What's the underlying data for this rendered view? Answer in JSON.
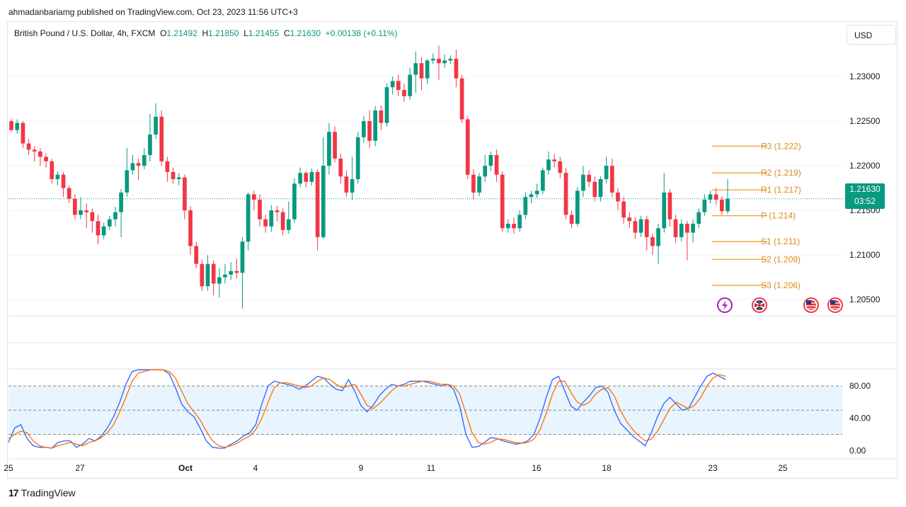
{
  "header": {
    "published": "ahmadanbariamg published on TradingView.com, Oct 23, 2023 11:56 UTC+3"
  },
  "legend": {
    "symbol": "British Pound / U.S. Dollar, 4h, FXCM",
    "o_label": "O",
    "o": "1.21492",
    "h_label": "H",
    "h": "1.21850",
    "l_label": "L",
    "l": "1.21455",
    "c_label": "C",
    "c": "1.21630",
    "change": "+0.00138 (+0.11%)"
  },
  "currency_button": "USD",
  "last_price": {
    "value": "1.21630",
    "countdown": "03:52"
  },
  "footer": {
    "brand_mark": "17",
    "brand": "TradingView"
  },
  "colors": {
    "up": "#089981",
    "down": "#f23645",
    "pivot": "#f0a030",
    "stoch_k": "#2962ff",
    "stoch_d": "#ff6d00"
  },
  "chart_data": [
    {
      "type": "candlestick",
      "title": "British Pound / U.S. Dollar, 4h, FXCM",
      "y_ticks": [
        "1.20500",
        "1.21000",
        "1.21500",
        "1.22000",
        "1.22500",
        "1.23000"
      ],
      "ylim": [
        1.2035,
        1.2335
      ],
      "x_ticks": [
        "25",
        "27",
        "Oct",
        "4",
        "9",
        "11",
        "16",
        "18",
        "23",
        "25"
      ],
      "candles": [
        [
          1.225,
          1.224,
          1.2252,
          1.2238
        ],
        [
          1.224,
          1.2248,
          1.2252,
          1.2236
        ],
        [
          1.2248,
          1.2225,
          1.225,
          1.222
        ],
        [
          1.2225,
          1.2218,
          1.223,
          1.2212
        ],
        [
          1.2218,
          1.2216,
          1.2222,
          1.2205
        ],
        [
          1.2216,
          1.221,
          1.222,
          1.22
        ],
        [
          1.221,
          1.2205,
          1.2214,
          1.2198
        ],
        [
          1.2205,
          1.2185,
          1.2208,
          1.218
        ],
        [
          1.2185,
          1.219,
          1.2194,
          1.2178
        ],
        [
          1.219,
          1.2175,
          1.2193,
          1.2165
        ],
        [
          1.2175,
          1.2163,
          1.2178,
          1.2158
        ],
        [
          1.2163,
          1.2145,
          1.2168,
          1.214
        ],
        [
          1.2145,
          1.215,
          1.2165,
          1.214
        ],
        [
          1.215,
          1.2148,
          1.2158,
          1.213
        ],
        [
          1.2148,
          1.2138,
          1.2152,
          1.2125
        ],
        [
          1.2138,
          1.2122,
          1.2145,
          1.2112
        ],
        [
          1.2122,
          1.2132,
          1.2136,
          1.2118
        ],
        [
          1.2132,
          1.214,
          1.2144,
          1.2128
        ],
        [
          1.214,
          1.2148,
          1.2154,
          1.2132
        ],
        [
          1.2148,
          1.217,
          1.2174,
          1.212
        ],
        [
          1.217,
          1.2195,
          1.222,
          1.2165
        ],
        [
          1.2195,
          1.2203,
          1.2212,
          1.219
        ],
        [
          1.2203,
          1.22,
          1.2208,
          1.2184
        ],
        [
          1.22,
          1.2212,
          1.222,
          1.2196
        ],
        [
          1.2212,
          1.2235,
          1.2258,
          1.2205
        ],
        [
          1.2235,
          1.2255,
          1.227,
          1.223
        ],
        [
          1.2255,
          1.2205,
          1.2262,
          1.22
        ],
        [
          1.2205,
          1.2193,
          1.221,
          1.2182
        ],
        [
          1.2193,
          1.2185,
          1.2198,
          1.218
        ],
        [
          1.2185,
          1.2187,
          1.2192,
          1.2178
        ],
        [
          1.2187,
          1.215,
          1.219,
          1.214
        ],
        [
          1.215,
          1.211,
          1.2155,
          1.21
        ],
        [
          1.211,
          1.209,
          1.2115,
          1.2085
        ],
        [
          1.209,
          1.2065,
          1.2095,
          1.206
        ],
        [
          1.2065,
          1.209,
          1.21,
          1.206
        ],
        [
          1.209,
          1.2068,
          1.2094,
          1.2055
        ],
        [
          1.2068,
          1.2075,
          1.2085,
          1.2052
        ],
        [
          1.2075,
          1.2078,
          1.209,
          1.2068
        ],
        [
          1.2078,
          1.2082,
          1.2092,
          1.2072
        ],
        [
          1.2082,
          1.208,
          1.2096,
          1.2074
        ],
        [
          1.208,
          1.2115,
          1.212,
          1.204
        ],
        [
          1.2115,
          1.2168,
          1.217,
          1.2105
        ],
        [
          1.2168,
          1.2162,
          1.2172,
          1.215
        ],
        [
          1.2162,
          1.214,
          1.2168,
          1.2132
        ],
        [
          1.214,
          1.2132,
          1.2145,
          1.2125
        ],
        [
          1.2132,
          1.215,
          1.2156,
          1.2126
        ],
        [
          1.215,
          1.2148,
          1.2155,
          1.2138
        ],
        [
          1.2148,
          1.2128,
          1.2152,
          1.2122
        ],
        [
          1.2128,
          1.214,
          1.216,
          1.2124
        ],
        [
          1.214,
          1.218,
          1.2186,
          1.2136
        ],
        [
          1.218,
          1.2192,
          1.2198,
          1.2176
        ],
        [
          1.2192,
          1.2182,
          1.2194,
          1.2176
        ],
        [
          1.2182,
          1.2193,
          1.2197,
          1.2178
        ],
        [
          1.2193,
          1.212,
          1.2196,
          1.2105
        ],
        [
          1.212,
          1.22,
          1.2232,
          1.2118
        ],
        [
          1.22,
          1.2238,
          1.2248,
          1.219
        ],
        [
          1.2238,
          1.2208,
          1.2244,
          1.2204
        ],
        [
          1.2208,
          1.2188,
          1.2214,
          1.218
        ],
        [
          1.2188,
          1.217,
          1.2195,
          1.2165
        ],
        [
          1.217,
          1.2185,
          1.221,
          1.2162
        ],
        [
          1.2185,
          1.2232,
          1.2238,
          1.218
        ],
        [
          1.2232,
          1.225,
          1.2256,
          1.2226
        ],
        [
          1.225,
          1.2228,
          1.2262,
          1.222
        ],
        [
          1.2228,
          1.2262,
          1.2267,
          1.2222
        ],
        [
          1.2262,
          1.2248,
          1.2268,
          1.224
        ],
        [
          1.2248,
          1.2288,
          1.2292,
          1.2244
        ],
        [
          1.2288,
          1.2295,
          1.23,
          1.228
        ],
        [
          1.2295,
          1.2285,
          1.2302,
          1.2278
        ],
        [
          1.2285,
          1.2278,
          1.2292,
          1.2272
        ],
        [
          1.2278,
          1.2302,
          1.231,
          1.2274
        ],
        [
          1.2302,
          1.2315,
          1.2328,
          1.2282
        ],
        [
          1.2315,
          1.2298,
          1.2322,
          1.2285
        ],
        [
          1.2298,
          1.2318,
          1.232,
          1.2292
        ],
        [
          1.2318,
          1.232,
          1.2326,
          1.2314
        ],
        [
          1.232,
          1.2315,
          1.2335,
          1.2296
        ],
        [
          1.2315,
          1.2318,
          1.2325,
          1.231
        ],
        [
          1.2318,
          1.232,
          1.2324,
          1.2314
        ],
        [
          1.232,
          1.2298,
          1.233,
          1.2288
        ],
        [
          1.2298,
          1.2252,
          1.2302,
          1.2248
        ],
        [
          1.2252,
          1.219,
          1.2256,
          1.2185
        ],
        [
          1.219,
          1.217,
          1.2196,
          1.2162
        ],
        [
          1.217,
          1.2188,
          1.2192,
          1.2166
        ],
        [
          1.2188,
          1.22,
          1.2212,
          1.2182
        ],
        [
          1.22,
          1.2212,
          1.2216,
          1.2194
        ],
        [
          1.2212,
          1.219,
          1.2218,
          1.2182
        ],
        [
          1.219,
          1.213,
          1.2194,
          1.2126
        ],
        [
          1.213,
          1.2135,
          1.214,
          1.2125
        ],
        [
          1.2135,
          1.213,
          1.2142,
          1.2124
        ],
        [
          1.213,
          1.2145,
          1.215,
          1.2126
        ],
        [
          1.2145,
          1.2165,
          1.217,
          1.214
        ],
        [
          1.2165,
          1.2168,
          1.2172,
          1.2158
        ],
        [
          1.2168,
          1.2172,
          1.218,
          1.2164
        ],
        [
          1.2172,
          1.2195,
          1.2198,
          1.2168
        ],
        [
          1.2195,
          1.2207,
          1.2216,
          1.219
        ],
        [
          1.2207,
          1.2205,
          1.2213,
          1.2198
        ],
        [
          1.2205,
          1.2192,
          1.221,
          1.2186
        ],
        [
          1.2192,
          1.2145,
          1.2198,
          1.214
        ],
        [
          1.2145,
          1.2135,
          1.215,
          1.213
        ],
        [
          1.2135,
          1.2172,
          1.2176,
          1.2132
        ],
        [
          1.2172,
          1.219,
          1.22,
          1.2165
        ],
        [
          1.219,
          1.2182,
          1.2195,
          1.2176
        ],
        [
          1.2182,
          1.2165,
          1.2188,
          1.216
        ],
        [
          1.2165,
          1.2185,
          1.2188,
          1.216
        ],
        [
          1.2185,
          1.22,
          1.221,
          1.218
        ],
        [
          1.22,
          1.217,
          1.2208,
          1.2165
        ],
        [
          1.217,
          1.216,
          1.2175,
          1.215
        ],
        [
          1.216,
          1.2142,
          1.2165,
          1.2135
        ],
        [
          1.2142,
          1.2138,
          1.2148,
          1.213
        ],
        [
          1.2138,
          1.2125,
          1.2142,
          1.2118
        ],
        [
          1.2125,
          1.214,
          1.2144,
          1.212
        ],
        [
          1.214,
          1.212,
          1.2144,
          1.2105
        ],
        [
          1.212,
          1.211,
          1.2124,
          1.21
        ],
        [
          1.211,
          1.213,
          1.2135,
          1.209
        ],
        [
          1.213,
          1.217,
          1.2192,
          1.2125
        ],
        [
          1.217,
          1.214,
          1.2174,
          1.2132
        ],
        [
          1.214,
          1.212,
          1.2145,
          1.2114
        ],
        [
          1.212,
          1.2135,
          1.214,
          1.2115
        ],
        [
          1.2135,
          1.2125,
          1.2138,
          1.2094
        ],
        [
          1.2125,
          1.2135,
          1.214,
          1.2114
        ],
        [
          1.2135,
          1.2148,
          1.2152,
          1.213
        ],
        [
          1.2148,
          1.2162,
          1.2168,
          1.2144
        ],
        [
          1.2162,
          1.2168,
          1.2172,
          1.2158
        ],
        [
          1.2168,
          1.2162,
          1.2175,
          1.2156
        ],
        [
          1.2162,
          1.2149,
          1.2166,
          1.2145
        ],
        [
          1.2149,
          1.2163,
          1.2185,
          1.2146
        ]
      ],
      "pivots": [
        {
          "label": "R3 (1.222)",
          "value": 1.2222
        },
        {
          "label": "R2 (1.219)",
          "value": 1.2192
        },
        {
          "label": "R1 (1.217)",
          "value": 1.2173
        },
        {
          "label": "P (1.214)",
          "value": 1.2144
        },
        {
          "label": "S1 (1.211)",
          "value": 1.2115
        },
        {
          "label": "S2 (1.209)",
          "value": 1.2095
        },
        {
          "label": "S3 (1.206)",
          "value": 1.2066
        }
      ],
      "last_price": 1.2163
    },
    {
      "type": "line",
      "y_ticks": [
        "80.00",
        "40.00",
        "0.00"
      ],
      "ylim": [
        -5,
        95
      ],
      "band": [
        20,
        80
      ],
      "middle": 50,
      "series": [
        {
          "values": [
            10,
            28,
            32,
            15,
            6,
            4,
            4,
            3,
            10,
            12,
            12,
            4,
            8,
            15,
            12,
            18,
            28,
            42,
            60,
            82,
            98,
            100,
            100,
            100,
            100,
            100,
            95,
            78,
            58,
            48,
            42,
            28,
            12,
            4,
            3,
            3,
            8,
            12,
            18,
            22,
            32,
            58,
            80,
            86,
            84,
            82,
            80,
            76,
            80,
            86,
            92,
            90,
            82,
            76,
            74,
            88,
            74,
            56,
            48,
            56,
            68,
            76,
            82,
            80,
            82,
            86,
            86,
            86,
            84,
            82,
            80,
            82,
            76,
            55,
            20,
            4,
            5,
            10,
            16,
            15,
            12,
            10,
            8,
            9,
            12,
            20,
            40,
            66,
            88,
            92,
            74,
            55,
            50,
            60,
            68,
            78,
            80,
            72,
            50,
            34,
            26,
            18,
            12,
            6,
            22,
            42,
            58,
            66,
            58,
            50,
            52,
            66,
            80,
            92,
            96,
            92,
            88
          ]
        },
        {
          "values": [
            15,
            20,
            24,
            22,
            12,
            6,
            4,
            3,
            6,
            8,
            10,
            8,
            6,
            10,
            12,
            16,
            22,
            32,
            48,
            66,
            86,
            96,
            98,
            100,
            100,
            100,
            98,
            90,
            74,
            58,
            48,
            38,
            24,
            12,
            6,
            4,
            6,
            9,
            14,
            18,
            26,
            40,
            60,
            78,
            84,
            84,
            82,
            80,
            78,
            80,
            86,
            90,
            88,
            82,
            78,
            80,
            82,
            70,
            56,
            52,
            58,
            66,
            74,
            80,
            80,
            82,
            84,
            86,
            86,
            84,
            82,
            82,
            80,
            70,
            46,
            22,
            10,
            8,
            10,
            14,
            14,
            12,
            10,
            9,
            10,
            14,
            26,
            46,
            70,
            86,
            86,
            72,
            60,
            56,
            60,
            70,
            76,
            78,
            68,
            50,
            36,
            26,
            18,
            12,
            14,
            24,
            38,
            52,
            60,
            56,
            52,
            56,
            66,
            80,
            90,
            94,
            92
          ]
        }
      ]
    }
  ]
}
